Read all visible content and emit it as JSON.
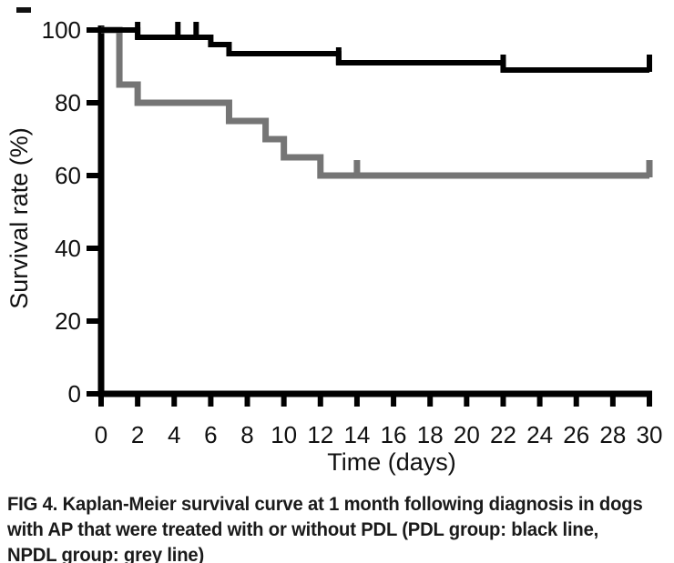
{
  "figure": {
    "caption": {
      "lines": [
        "FIG 4. Kaplan-Meier survival curve at 1 month following diagnosis in dogs",
        "with AP that were treated with or without PDL (PDL group: black line,",
        "NPDL group: grey line)"
      ]
    },
    "legend": [
      {
        "group": "PDL group",
        "style": "black line"
      },
      {
        "group": "NPDL group",
        "style": "grey line"
      }
    ]
  },
  "chart_data": {
    "type": "line",
    "subtype": "kaplan_meier_step",
    "title": "",
    "xlabel": "Time (days)",
    "ylabel": "Survival rate (%)",
    "xlim": [
      0,
      30
    ],
    "ylim": [
      0,
      100
    ],
    "grid": false,
    "legend_position": "none (described in caption)",
    "xticks": [
      0,
      2,
      4,
      6,
      8,
      10,
      12,
      14,
      16,
      18,
      20,
      22,
      24,
      26,
      28,
      30
    ],
    "yticks": [
      0,
      20,
      40,
      60,
      80,
      100
    ],
    "series": [
      {
        "name": "PDL group",
        "color": "#000000",
        "line_width": 6,
        "start": [
          0,
          100
        ],
        "drops": [
          [
            2,
            98
          ],
          [
            6,
            96
          ],
          [
            7,
            93.5
          ],
          [
            13,
            91
          ],
          [
            22,
            89
          ]
        ],
        "end_day": 30,
        "end_value": 89,
        "censor_marks_days": [
          2,
          4.2,
          5.2,
          13,
          22,
          30
        ]
      },
      {
        "name": "NPDL group",
        "color": "#757575",
        "line_width": 7,
        "start": [
          0,
          100
        ],
        "drops": [
          [
            1,
            85
          ],
          [
            2,
            80
          ],
          [
            7,
            75
          ],
          [
            9,
            70
          ],
          [
            10,
            65
          ],
          [
            12,
            60
          ]
        ],
        "end_day": 30,
        "end_value": 60,
        "censor_marks_days": [
          14,
          30
        ]
      }
    ]
  }
}
